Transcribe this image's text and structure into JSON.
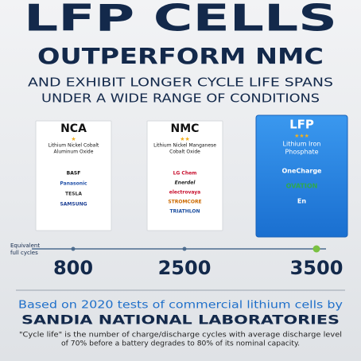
{
  "header": {
    "title": "LFP CELLS",
    "subtitle": "OUTPERFORM NMC",
    "description": [
      "AND EXHIBIT LONGER CYCLE LIFE SPANS",
      "UNDER A WIDE RANGE OF CONDITIONS"
    ]
  },
  "cards": [
    {
      "name": "NCA",
      "rating": "★",
      "description": [
        "Lithium Nickel Cobalt",
        "Aluminum Oxide"
      ],
      "brands": [
        "BASF",
        "Panasonic",
        "TESLA",
        "SAMSUNG"
      ]
    },
    {
      "name": "NMC",
      "rating": "★★",
      "description": [
        "Lithium Nickel Manganese",
        "Cobalt Oxide"
      ],
      "brands": [
        "LG Chem",
        "Enerdel",
        "electrovaya",
        "STROMCORE",
        "TRIATHLON"
      ]
    },
    {
      "name": "LFP",
      "rating": "★★★",
      "description": [
        "Lithium Iron",
        "Phosphate"
      ],
      "brands": [
        "OneCharge",
        "OVATION",
        "En"
      ]
    }
  ],
  "timeline": {
    "label": [
      "Equivalent",
      "full cycles"
    ],
    "cycles": [
      "800",
      "2500",
      "3500"
    ]
  },
  "footer": {
    "intro": "Based on 2020 tests of commercial lithium cells by",
    "source": "SANDIA NATIONAL LABORATORIES",
    "note": [
      "\"Cycle life\" is the number of charge/discharge cycles with average discharge level",
      "of 70% before a battery degrades to 80% of its nominal capacity."
    ]
  }
}
